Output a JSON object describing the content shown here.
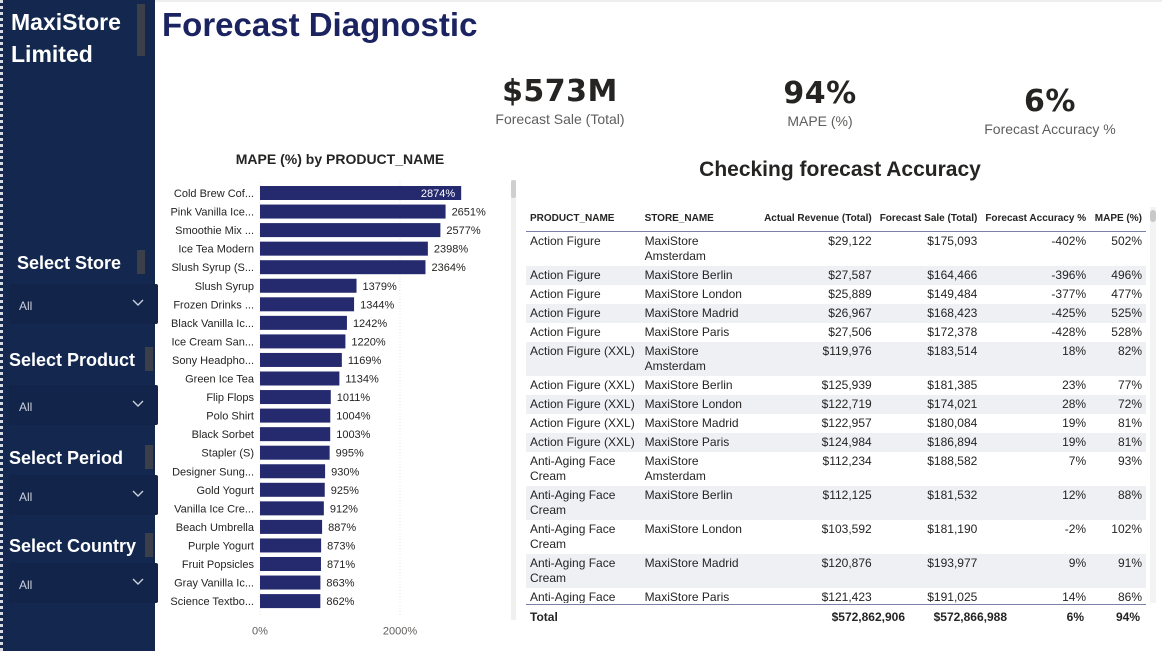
{
  "sidebar": {
    "brand": "MaxiStore Limited",
    "slicers": [
      {
        "title": "Select Store",
        "value": "All"
      },
      {
        "title": "Select Product",
        "value": "All"
      },
      {
        "title": "Select Period",
        "value": "All"
      },
      {
        "title": "Select Country",
        "value": "All"
      }
    ]
  },
  "header": {
    "title": "Forecast Diagnostic"
  },
  "kpis": [
    {
      "value": "$573M",
      "label": "Forecast Sale (Total)"
    },
    {
      "value": "94%",
      "label": "MAPE (%)"
    },
    {
      "value": "6%",
      "label": "Forecast Accuracy %"
    }
  ],
  "chart_data": {
    "type": "bar",
    "orientation": "horizontal",
    "title": "MAPE (%) by PRODUCT_NAME",
    "categories": [
      "Cold Brew Cof...",
      "Pink Vanilla Ice...",
      "Smoothie Mix ...",
      "Ice Tea Modern",
      "Slush Syrup (S...",
      "Slush Syrup",
      "Frozen Drinks ...",
      "Black Vanilla Ic...",
      "Ice Cream San...",
      "Sony Headpho...",
      "Green Ice Tea",
      "Flip Flops",
      "Polo Shirt",
      "Black Sorbet",
      "Stapler (S)",
      "Designer Sung...",
      "Gold Yogurt",
      "Vanilla Ice Cre...",
      "Beach Umbrella",
      "Purple Yogurt",
      "Fruit Popsicles",
      "Gray Vanilla Ic...",
      "Science Textbo..."
    ],
    "values": [
      2874,
      2651,
      2577,
      2398,
      2364,
      1379,
      1344,
      1242,
      1220,
      1169,
      1134,
      1011,
      1004,
      1003,
      995,
      930,
      925,
      912,
      887,
      873,
      871,
      863,
      862
    ],
    "value_labels": [
      "2874%",
      "2651%",
      "2577%",
      "2398%",
      "2364%",
      "1379%",
      "1344%",
      "1242%",
      "1220%",
      "1169%",
      "1134%",
      "1011%",
      "1004%",
      "1003%",
      "995%",
      "930%",
      "925%",
      "912%",
      "887%",
      "873%",
      "871%",
      "863%",
      "862%"
    ],
    "x_ticks": [
      "0%",
      "2000%"
    ],
    "xlim": [
      0,
      3000
    ],
    "bar_color": "#252a6e",
    "grid": true
  },
  "table": {
    "title": "Checking forecast Accuracy",
    "columns": [
      "PRODUCT_NAME",
      "STORE_NAME",
      "Actual Revenue (Total)",
      "Forecast Sale (Total)",
      "Forecast Accuracy %",
      "MAPE (%)"
    ],
    "rows": [
      [
        "Action Figure",
        "MaxiStore Amsterdam",
        "$29,122",
        "$175,093",
        "-402%",
        "502%"
      ],
      [
        "Action Figure",
        "MaxiStore Berlin",
        "$27,587",
        "$164,466",
        "-396%",
        "496%"
      ],
      [
        "Action Figure",
        "MaxiStore London",
        "$25,889",
        "$149,484",
        "-377%",
        "477%"
      ],
      [
        "Action Figure",
        "MaxiStore Madrid",
        "$26,967",
        "$168,423",
        "-425%",
        "525%"
      ],
      [
        "Action Figure",
        "MaxiStore Paris",
        "$27,506",
        "$172,378",
        "-428%",
        "528%"
      ],
      [
        "Action Figure (XXL)",
        "MaxiStore Amsterdam",
        "$119,976",
        "$183,514",
        "18%",
        "82%"
      ],
      [
        "Action Figure (XXL)",
        "MaxiStore Berlin",
        "$125,939",
        "$181,385",
        "23%",
        "77%"
      ],
      [
        "Action Figure (XXL)",
        "MaxiStore London",
        "$122,719",
        "$174,021",
        "28%",
        "72%"
      ],
      [
        "Action Figure (XXL)",
        "MaxiStore Madrid",
        "$122,957",
        "$180,084",
        "19%",
        "81%"
      ],
      [
        "Action Figure (XXL)",
        "MaxiStore Paris",
        "$124,984",
        "$186,894",
        "19%",
        "81%"
      ],
      [
        "Anti-Aging Face Cream",
        "MaxiStore Amsterdam",
        "$112,234",
        "$188,582",
        "7%",
        "93%"
      ],
      [
        "Anti-Aging Face Cream",
        "MaxiStore Berlin",
        "$112,125",
        "$181,532",
        "12%",
        "88%"
      ],
      [
        "Anti-Aging Face Cream",
        "MaxiStore London",
        "$103,592",
        "$181,190",
        "-2%",
        "102%"
      ],
      [
        "Anti-Aging Face Cream",
        "MaxiStore Madrid",
        "$120,876",
        "$193,977",
        "9%",
        "91%"
      ],
      [
        "Anti-Aging Face Cream",
        "MaxiStore Paris",
        "$121,423",
        "$191,025",
        "14%",
        "86%"
      ]
    ],
    "total": {
      "label": "Total",
      "actual": "$572,862,906",
      "forecast": "$572,866,988",
      "accuracy": "6%",
      "mape": "94%"
    }
  },
  "colors": {
    "sidebar": "#13274f",
    "title": "#1b2460",
    "bar": "#252a6e"
  }
}
